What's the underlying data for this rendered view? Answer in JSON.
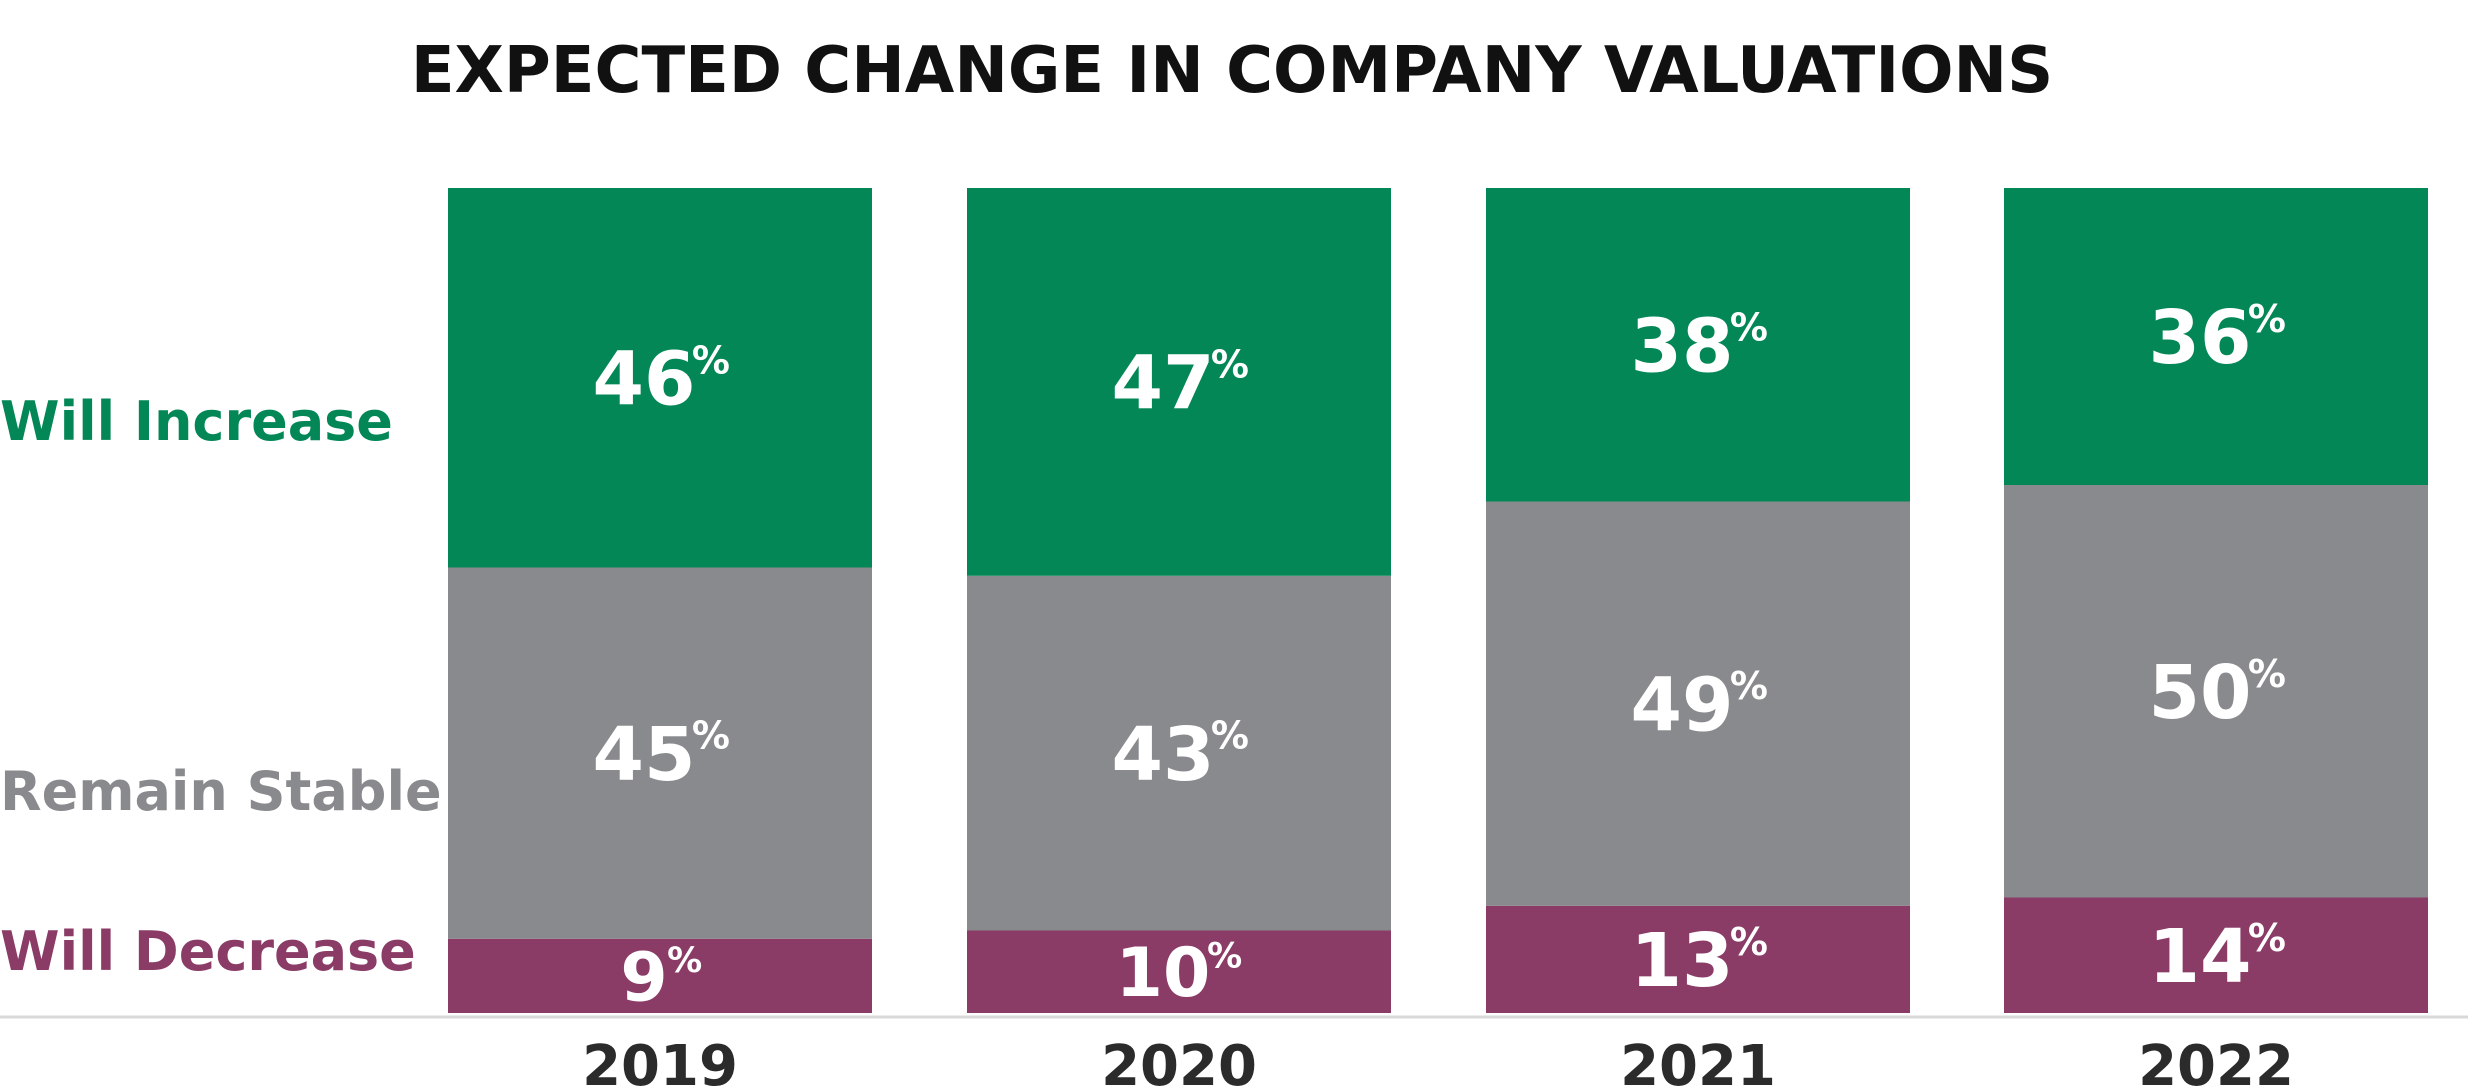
{
  "chart_data": {
    "type": "bar",
    "stacked": true,
    "title": "EXPECTED CHANGE IN COMPANY VALUATIONS",
    "categories": [
      "2019",
      "2020",
      "2021",
      "2022"
    ],
    "series": [
      {
        "name": "Will Decrease",
        "values": [
          9,
          10,
          13,
          14
        ],
        "color": "#8a3b66"
      },
      {
        "name": "Remain Stable",
        "values": [
          45,
          43,
          49,
          50
        ],
        "color": "#898a8d"
      },
      {
        "name": "Will Increase",
        "values": [
          46,
          47,
          38,
          36
        ],
        "color": "#038756"
      }
    ],
    "value_suffix": "%",
    "ylim": [
      0,
      100
    ],
    "legend_position": "left",
    "grid": false
  }
}
